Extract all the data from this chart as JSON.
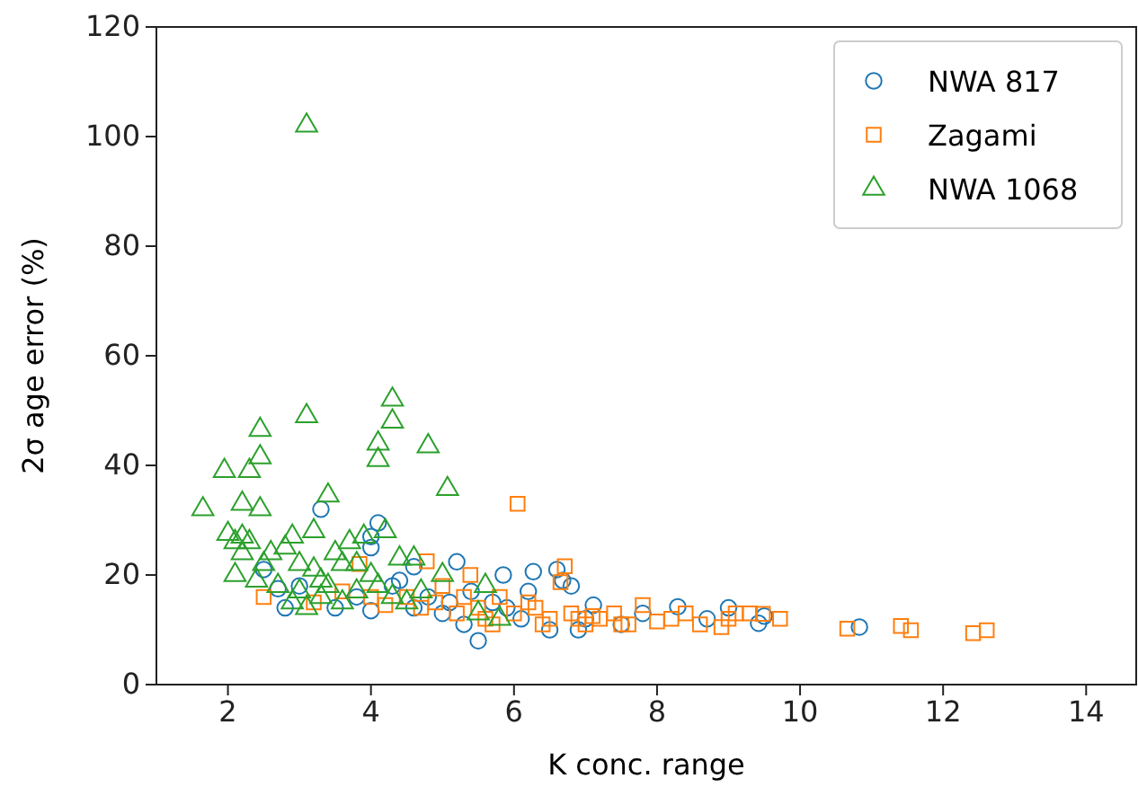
{
  "chart_data": {
    "type": "scatter",
    "xlabel": "K conc. range",
    "ylabel": "2σ age error (%)",
    "xlim": [
      1,
      14.7
    ],
    "ylim": [
      0,
      120
    ],
    "xticks": [
      2,
      4,
      6,
      8,
      10,
      12,
      14
    ],
    "yticks": [
      0,
      20,
      40,
      60,
      80,
      100,
      120
    ],
    "grid": false,
    "legend": "top right",
    "series": [
      {
        "name": "NWA 817",
        "color": "#1f77b4",
        "marker": "circle",
        "x": [
          3.3,
          4.1,
          4.0,
          4.0,
          4.6,
          2.5,
          2.7,
          3.0,
          3.5,
          4.0,
          4.6,
          5.0,
          5.3,
          5.2,
          5.5,
          5.85,
          6.27,
          6.2,
          6.68,
          6.6,
          6.8,
          7.0,
          7.11,
          7.8,
          8.29,
          8.7,
          9.42,
          9.0,
          10.83,
          6.5,
          6.1,
          5.7,
          7.5,
          3.8,
          4.3,
          4.8,
          5.4,
          5.9,
          6.9,
          5.1,
          2.8,
          4.4,
          9.5
        ],
        "values": [
          32,
          29.5,
          27,
          25,
          21.5,
          21,
          17.5,
          18,
          14,
          13.5,
          14,
          13,
          11,
          22.4,
          8,
          20,
          20.6,
          17,
          19,
          21,
          18,
          12,
          14.5,
          13,
          14.2,
          12,
          11.2,
          14,
          10.5,
          10,
          12,
          15,
          11,
          16,
          18,
          16,
          17,
          14,
          10,
          15,
          14,
          19,
          12.5
        ]
      },
      {
        "name": "Zagami",
        "color": "#ff7f0e",
        "marker": "square",
        "x": [
          6.05,
          6.71,
          6.65,
          5.39,
          4.78,
          3.84,
          2.5,
          3.2,
          3.6,
          4.2,
          4.5,
          4.9,
          5.2,
          5.5,
          5.6,
          5.8,
          6.0,
          6.3,
          6.5,
          6.8,
          7.0,
          7.2,
          7.4,
          7.6,
          7.8,
          8.0,
          8.2,
          8.4,
          8.6,
          8.9,
          9.1,
          9.3,
          9.0,
          9.72,
          9.48,
          10.66,
          11.41,
          11.55,
          12.42,
          12.61,
          4.0,
          4.7,
          5.3,
          5.7,
          6.2,
          6.9,
          7.5,
          5.0,
          6.4,
          7.1
        ],
        "values": [
          33,
          21.6,
          18.7,
          20,
          22.5,
          22,
          16,
          15,
          17,
          14.5,
          16,
          15,
          13,
          14,
          12,
          16,
          13,
          14,
          12,
          13,
          11,
          12,
          13,
          11,
          14.5,
          11.5,
          12,
          13,
          11,
          10.5,
          13,
          13,
          12,
          12,
          12.9,
          10.2,
          10.7,
          9.9,
          9.4,
          9.9,
          16,
          14,
          16,
          11,
          15,
          12,
          11,
          18,
          11,
          12.5
        ]
      },
      {
        "name": "NWA 1068",
        "color": "#2ca02c",
        "marker": "triangle",
        "x": [
          1.65,
          1.95,
          2.0,
          2.3,
          2.45,
          2.45,
          2.2,
          2.45,
          3.1,
          3.4,
          4.3,
          4.3,
          4.1,
          4.1,
          4.8,
          5.07,
          3.1,
          2.1,
          2.2,
          2.3,
          2.2,
          2.1,
          2.4,
          2.5,
          2.6,
          2.8,
          2.9,
          3.2,
          3.0,
          3.2,
          3.3,
          3.5,
          3.6,
          3.8,
          3.7,
          3.9,
          4.0,
          4.2,
          4.4,
          3.0,
          3.3,
          3.6,
          3.8,
          4.1,
          4.3,
          2.7,
          2.9,
          3.4,
          3.1,
          4.5,
          4.7,
          5.0,
          4.6,
          5.5,
          5.6,
          5.8
        ],
        "values": [
          32,
          39,
          27.5,
          39,
          41.5,
          46.5,
          33,
          32,
          49,
          34.5,
          52,
          48,
          44,
          41,
          43.5,
          35.7,
          102,
          26,
          27,
          26,
          24,
          20,
          19,
          22,
          24,
          25,
          27,
          28,
          22,
          21,
          19,
          24,
          22,
          22,
          26,
          27,
          20,
          28,
          23,
          17,
          16,
          15,
          17,
          18,
          16,
          18,
          15,
          18,
          14,
          15,
          17,
          20,
          23,
          13,
          18,
          12
        ]
      }
    ]
  }
}
